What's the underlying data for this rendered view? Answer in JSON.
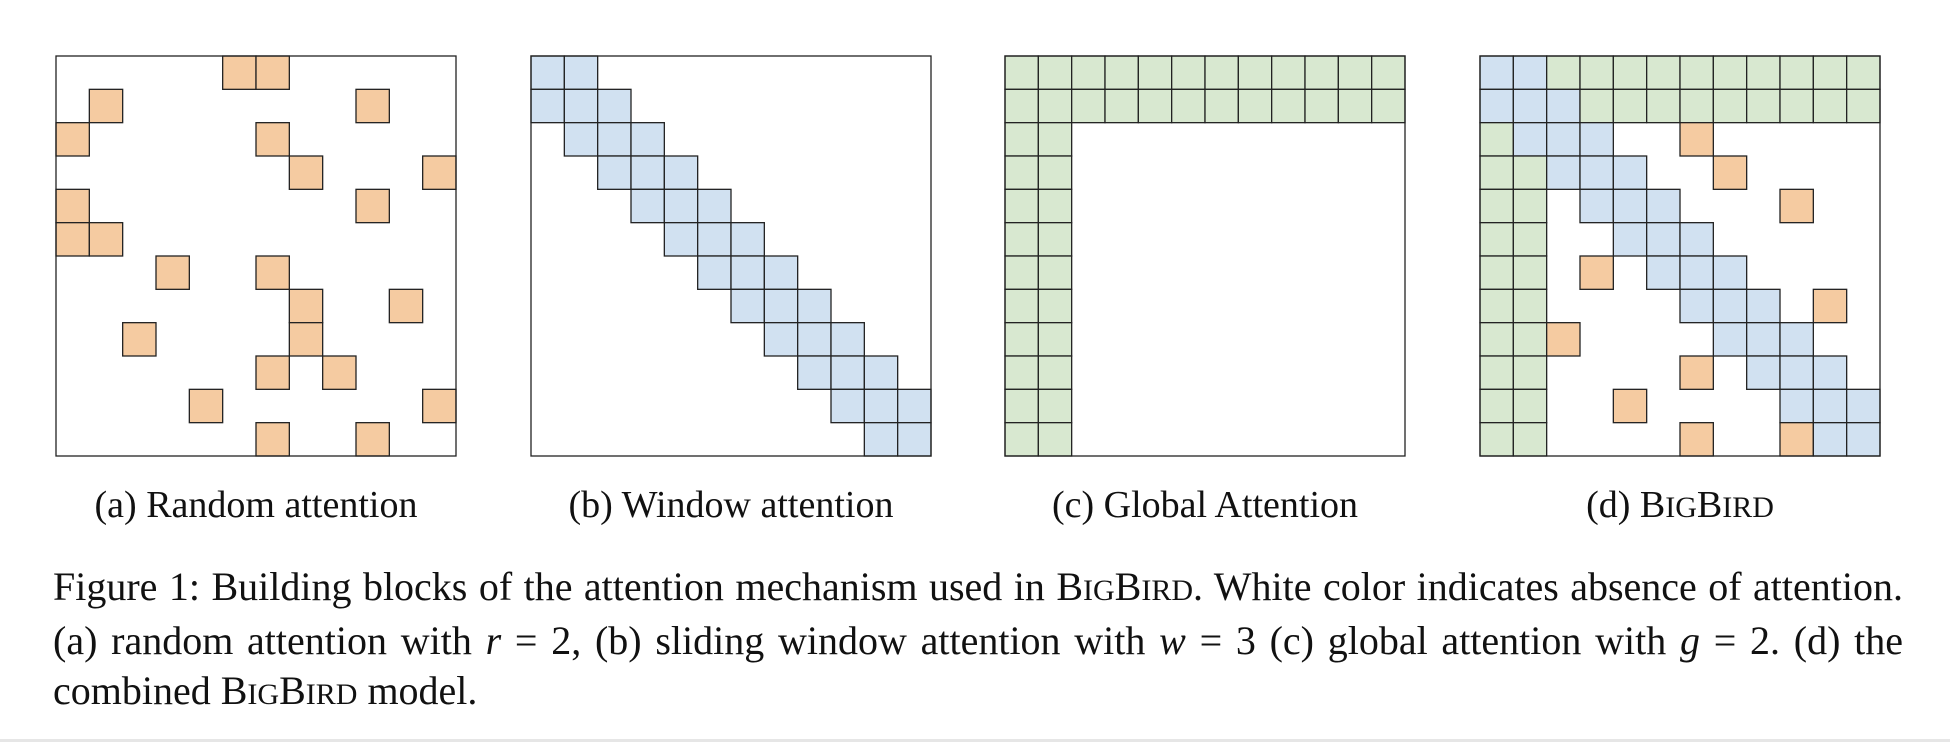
{
  "colors": {
    "random": "#f5cba1",
    "window": "#d1e1f1",
    "global": "#d8e8d0",
    "border": "#222222"
  },
  "grid_size": 12,
  "panels": [
    {
      "id": "a",
      "label": "(a) Random attention",
      "random": [
        [
          0,
          5
        ],
        [
          0,
          6
        ],
        [
          1,
          1
        ],
        [
          1,
          9
        ],
        [
          2,
          0
        ],
        [
          2,
          6
        ],
        [
          3,
          7
        ],
        [
          3,
          11
        ],
        [
          4,
          0
        ],
        [
          4,
          9
        ],
        [
          5,
          0
        ],
        [
          5,
          1
        ],
        [
          6,
          3
        ],
        [
          6,
          6
        ],
        [
          7,
          7
        ],
        [
          7,
          10
        ],
        [
          8,
          2
        ],
        [
          8,
          7
        ],
        [
          9,
          6
        ],
        [
          9,
          8
        ],
        [
          10,
          4
        ],
        [
          10,
          11
        ],
        [
          11,
          6
        ],
        [
          11,
          9
        ]
      ]
    },
    {
      "id": "b",
      "label": "(b) Window attention",
      "window_width": 3
    },
    {
      "id": "c",
      "label": "(c) Global Attention",
      "global_count": 2
    },
    {
      "id": "d",
      "label_prefix": "(d) ",
      "label_big1": "B",
      "label_small1": "IG",
      "label_big2": "B",
      "label_small2": "IRD",
      "window_width": 3,
      "global_count": 2,
      "random": [
        [
          2,
          6
        ],
        [
          3,
          7
        ],
        [
          4,
          9
        ],
        [
          6,
          3
        ],
        [
          7,
          10
        ],
        [
          8,
          2
        ],
        [
          9,
          6
        ],
        [
          10,
          4
        ],
        [
          11,
          6
        ],
        [
          11,
          9
        ]
      ]
    }
  ],
  "caption": {
    "t1": "Figure 1: Building blocks of the attention mechanism used in ",
    "big1": "B",
    "small1": "IG",
    "big2": "B",
    "small2": "IRD",
    "t2": ". White color indicates absence of attention. (a) random attention with ",
    "var_r": "r",
    "eq1": " = 2, (b) sliding window attention with ",
    "var_w": "w",
    "eq2": " = 3 (c) global attention with ",
    "var_g": "g",
    "eq3": " = 2. (d) the combined ",
    "big3": "B",
    "small3": "IG",
    "big4": "B",
    "small4": "IRD",
    "t3": " model."
  }
}
